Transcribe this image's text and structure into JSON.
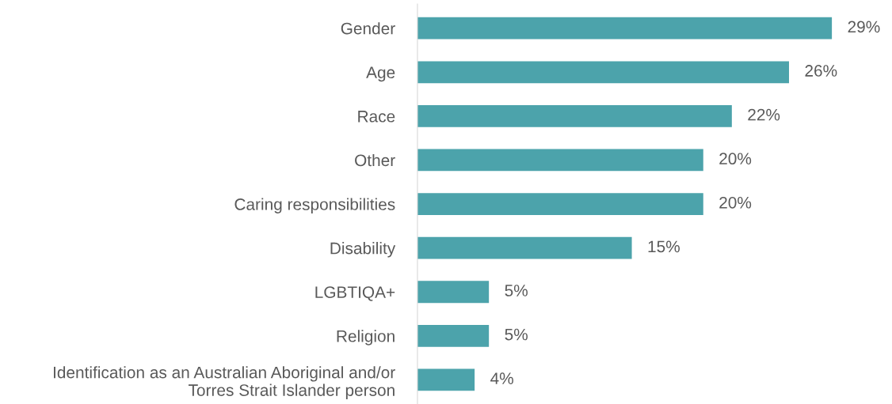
{
  "chart_data": {
    "type": "bar",
    "orientation": "horizontal",
    "categories": [
      "Gender",
      "Age",
      "Race",
      "Other",
      "Caring responsibilities",
      "Disability",
      "LGBTIQA+",
      "Religion",
      "Identification as an Australian Aboriginal and/or\nTorres Strait Islander person"
    ],
    "values": [
      29,
      26,
      22,
      20,
      20,
      15,
      5,
      5,
      4
    ],
    "value_labels": [
      "29%",
      "26%",
      "22%",
      "20%",
      "20%",
      "15%",
      "5%",
      "5%",
      "4%"
    ],
    "color": "#4ca3ab",
    "grid": false,
    "legend": false
  }
}
